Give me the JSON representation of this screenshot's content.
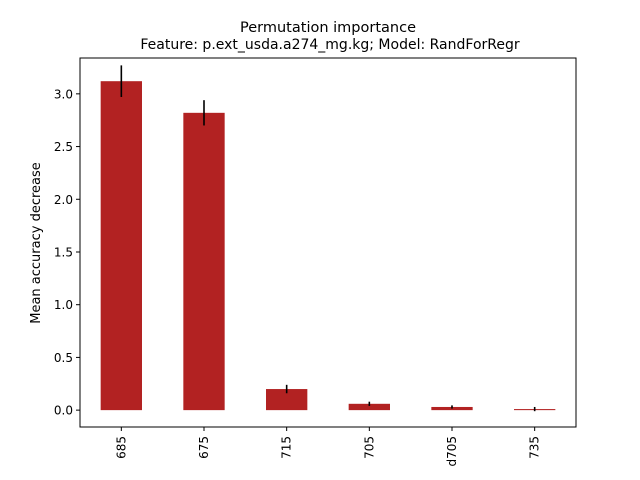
{
  "chart_data": {
    "type": "bar",
    "title": "Permutation importance",
    "subtitle": "Feature: p.ext_usda.a274_mg.kg; Model: RandForRegr",
    "xlabel": "",
    "ylabel": "Mean accuracy decrease",
    "categories": [
      "685",
      "675",
      "715",
      "705",
      "d705",
      "735"
    ],
    "values": [
      3.12,
      2.82,
      0.2,
      0.06,
      0.03,
      0.01
    ],
    "errors": [
      0.15,
      0.12,
      0.04,
      0.02,
      0.015,
      0.02
    ],
    "ylim": [
      -0.16,
      3.34
    ],
    "yticks": [
      0.0,
      0.5,
      1.0,
      1.5,
      2.0,
      2.5,
      3.0
    ],
    "ytick_labels": [
      "0.0",
      "0.5",
      "1.0",
      "1.5",
      "2.0",
      "2.5",
      "3.0"
    ],
    "grid": false,
    "legend": "none",
    "colors": {
      "bar": "#b22222",
      "errorbar": "#000000",
      "axes": "#000000"
    }
  }
}
